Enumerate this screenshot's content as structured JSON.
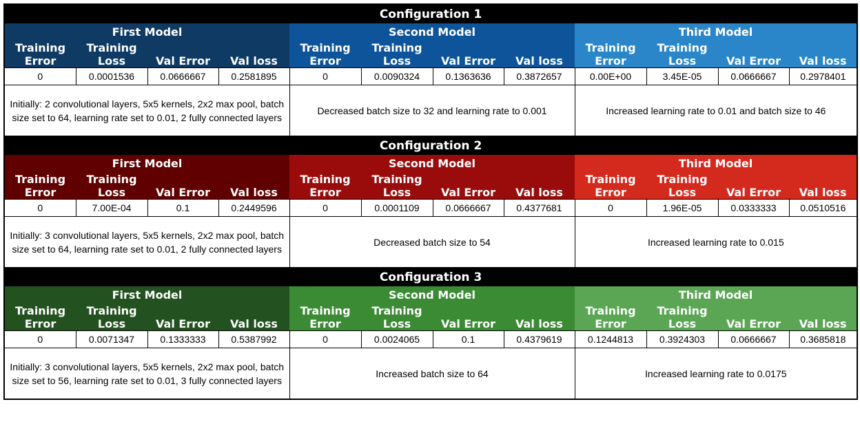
{
  "headers": {
    "training_error": [
      "Training",
      "Error"
    ],
    "training_loss": [
      "Training",
      "Loss"
    ],
    "val_error": "Val Error",
    "val_loss": "Val loss"
  },
  "colors": {
    "config1": {
      "title": "#000000",
      "m1": "#0e3a63",
      "m2": "#0e549a",
      "m3": "#2a86c8"
    },
    "config2": {
      "title": "#000000",
      "m1": "#610000",
      "m2": "#9a0c0c",
      "m3": "#d42a1e"
    },
    "config3": {
      "title": "#000000",
      "m1": "#23511f",
      "m2": "#3b8a34",
      "m3": "#5ba654"
    }
  },
  "configs": [
    {
      "title": "Configuration 1",
      "models": [
        {
          "name": "First Model",
          "values": [
            "0",
            "0.0001536",
            "0.0666667",
            "0.2581895"
          ],
          "description": "Initially: 2 convolutional layers, 5x5 kernels, 2x2 max pool, batch size set to 64, learning rate set to 0.01, 2 fully connected layers"
        },
        {
          "name": "Second Model",
          "values": [
            "0",
            "0.0090324",
            "0.1363636",
            "0.3872657"
          ],
          "description": "Decreased batch size to 32 and learning rate to 0.001"
        },
        {
          "name": "Third Model",
          "values": [
            "0.00E+00",
            "3.45E-05",
            "0.0666667",
            "0.2978401"
          ],
          "description": "Increased learning rate to 0.01 and batch size to 46"
        }
      ]
    },
    {
      "title": "Configuration 2",
      "models": [
        {
          "name": "First Model",
          "values": [
            "0",
            "7.00E-04",
            "0.1",
            "0.2449596"
          ],
          "description": "Initially: 3 convolutional layers, 5x5 kernels, 2x2 max pool, batch size set to 64, learning rate set to 0.01, 2 fully connected layers"
        },
        {
          "name": "Second Model",
          "values": [
            "0",
            "0.0001109",
            "0.0666667",
            "0.4377681"
          ],
          "description": "Decreased batch size to 54"
        },
        {
          "name": "Third Model",
          "values": [
            "0",
            "1.96E-05",
            "0.0333333",
            "0.0510516"
          ],
          "description": "Increased learning rate to 0.015"
        }
      ]
    },
    {
      "title": "Configuration 3",
      "models": [
        {
          "name": "First Model",
          "values": [
            "0",
            "0.0071347",
            "0.1333333",
            "0.5387992"
          ],
          "description": "Initially: 3 convolutional layers, 5x5 kernels, 2x2 max pool, batch size set to 56, learning rate set to 0.01, 3 fully connected layers"
        },
        {
          "name": "Second Model",
          "values": [
            "0",
            "0.0024065",
            "0.1",
            "0.4379619"
          ],
          "description": "Increased batch size to 64"
        },
        {
          "name": "Third Model",
          "values": [
            "0.1244813",
            "0.3924303",
            "0.0666667",
            "0.3685818"
          ],
          "description": "Increased learning rate to 0.0175"
        }
      ]
    }
  ]
}
